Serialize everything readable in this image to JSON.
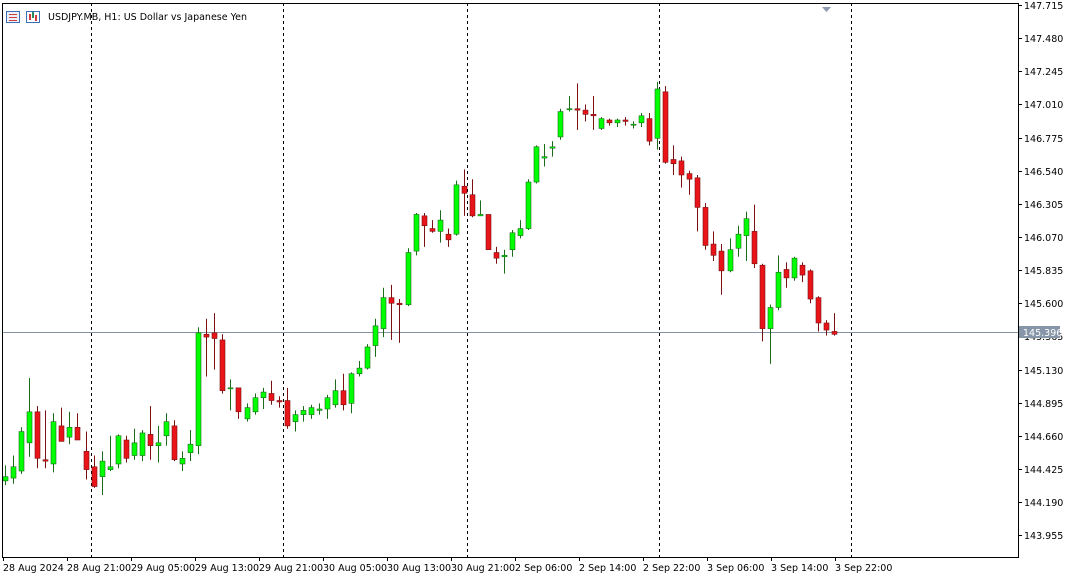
{
  "header": {
    "symbol": "USDJPY.MB",
    "timeframe": "H1:",
    "description": "US Dollar vs Japanese Yen"
  },
  "colors": {
    "bull_body": "#00ff00",
    "bear_body": "#e8141a",
    "wick_bull": "#1a6b1a",
    "wick_bear": "#7a1010",
    "axis": "#000000",
    "grid": "#000000",
    "current_price_line": "#8795a8",
    "current_price_label_bg": "#8795a8",
    "current_price_label_text": "#ffffff"
  },
  "current_price": {
    "value": 145.396,
    "label": "145.396"
  },
  "price_axis": {
    "ticks": [
      "147.715",
      "147.480",
      "147.245",
      "147.010",
      "146.775",
      "146.540",
      "146.305",
      "146.070",
      "145.835",
      "145.600",
      "145.365",
      "145.130",
      "144.895",
      "144.660",
      "144.425",
      "144.190",
      "143.955"
    ]
  },
  "time_axis": {
    "labels": [
      "28 Aug 2024",
      "28 Aug 21:00",
      "29 Aug 05:00",
      "29 Aug 13:00",
      "29 Aug 21:00",
      "30 Aug 05:00",
      "30 Aug 13:00",
      "30 Aug 21:00",
      "2 Sep 06:00",
      "2 Sep 14:00",
      "2 Sep 22:00",
      "3 Sep 06:00",
      "3 Sep 14:00",
      "3 Sep 22:00"
    ]
  },
  "chart_data": {
    "type": "candlestick",
    "title": "USDJPY.MB, H1: US Dollar vs Japanese Yen",
    "timeframe": "H1",
    "ylim": [
      143.8,
      147.73
    ],
    "grid": "vertical dashed separators",
    "candles": [
      {
        "o": 144.34,
        "h": 144.45,
        "l": 144.31,
        "c": 144.37
      },
      {
        "o": 144.36,
        "h": 144.52,
        "l": 144.32,
        "c": 144.44
      },
      {
        "o": 144.41,
        "h": 144.72,
        "l": 144.39,
        "c": 144.69
      },
      {
        "o": 144.61,
        "h": 145.07,
        "l": 144.51,
        "c": 144.83
      },
      {
        "o": 144.83,
        "h": 144.87,
        "l": 144.43,
        "c": 144.5
      },
      {
        "o": 144.49,
        "h": 144.84,
        "l": 144.43,
        "c": 144.48
      },
      {
        "o": 144.46,
        "h": 144.82,
        "l": 144.4,
        "c": 144.76
      },
      {
        "o": 144.73,
        "h": 144.86,
        "l": 144.62,
        "c": 144.62
      },
      {
        "o": 144.65,
        "h": 144.83,
        "l": 144.6,
        "c": 144.72
      },
      {
        "o": 144.72,
        "h": 144.82,
        "l": 144.64,
        "c": 144.63
      },
      {
        "o": 144.55,
        "h": 144.69,
        "l": 144.35,
        "c": 144.42
      },
      {
        "o": 144.44,
        "h": 144.52,
        "l": 144.29,
        "c": 144.3
      },
      {
        "o": 144.37,
        "h": 144.55,
        "l": 144.24,
        "c": 144.48
      },
      {
        "o": 144.42,
        "h": 144.66,
        "l": 144.41,
        "c": 144.44
      },
      {
        "o": 144.46,
        "h": 144.67,
        "l": 144.43,
        "c": 144.66
      },
      {
        "o": 144.63,
        "h": 144.66,
        "l": 144.47,
        "c": 144.5
      },
      {
        "o": 144.52,
        "h": 144.71,
        "l": 144.49,
        "c": 144.61
      },
      {
        "o": 144.52,
        "h": 144.7,
        "l": 144.48,
        "c": 144.68
      },
      {
        "o": 144.67,
        "h": 144.87,
        "l": 144.49,
        "c": 144.59
      },
      {
        "o": 144.59,
        "h": 144.73,
        "l": 144.47,
        "c": 144.61
      },
      {
        "o": 144.66,
        "h": 144.82,
        "l": 144.59,
        "c": 144.76
      },
      {
        "o": 144.73,
        "h": 144.77,
        "l": 144.48,
        "c": 144.49
      },
      {
        "o": 144.46,
        "h": 144.55,
        "l": 144.41,
        "c": 144.5
      },
      {
        "o": 144.54,
        "h": 144.7,
        "l": 144.48,
        "c": 144.6
      },
      {
        "o": 144.59,
        "h": 145.43,
        "l": 144.53,
        "c": 145.39
      },
      {
        "o": 145.38,
        "h": 145.49,
        "l": 145.08,
        "c": 145.36
      },
      {
        "o": 145.39,
        "h": 145.53,
        "l": 145.13,
        "c": 145.35
      },
      {
        "o": 145.34,
        "h": 145.38,
        "l": 144.96,
        "c": 144.98
      },
      {
        "o": 145.0,
        "h": 145.06,
        "l": 144.84,
        "c": 145.0
      },
      {
        "o": 145.0,
        "h": 145.0,
        "l": 144.78,
        "c": 144.83
      },
      {
        "o": 144.78,
        "h": 144.89,
        "l": 144.76,
        "c": 144.86
      },
      {
        "o": 144.83,
        "h": 144.96,
        "l": 144.81,
        "c": 144.93
      },
      {
        "o": 144.93,
        "h": 145.0,
        "l": 144.85,
        "c": 144.97
      },
      {
        "o": 144.96,
        "h": 145.05,
        "l": 144.88,
        "c": 144.91
      },
      {
        "o": 144.91,
        "h": 144.94,
        "l": 144.86,
        "c": 144.9
      },
      {
        "o": 144.91,
        "h": 145.0,
        "l": 144.71,
        "c": 144.73
      },
      {
        "o": 144.76,
        "h": 144.84,
        "l": 144.69,
        "c": 144.81
      },
      {
        "o": 144.81,
        "h": 144.87,
        "l": 144.76,
        "c": 144.84
      },
      {
        "o": 144.81,
        "h": 144.88,
        "l": 144.78,
        "c": 144.86
      },
      {
        "o": 144.84,
        "h": 144.89,
        "l": 144.81,
        "c": 144.85
      },
      {
        "o": 144.85,
        "h": 144.95,
        "l": 144.78,
        "c": 144.93
      },
      {
        "o": 144.88,
        "h": 145.06,
        "l": 144.86,
        "c": 144.98
      },
      {
        "o": 144.98,
        "h": 145.1,
        "l": 144.84,
        "c": 144.88
      },
      {
        "o": 144.89,
        "h": 145.11,
        "l": 144.82,
        "c": 145.1
      },
      {
        "o": 145.1,
        "h": 145.19,
        "l": 145.08,
        "c": 145.14
      },
      {
        "o": 145.14,
        "h": 145.31,
        "l": 145.13,
        "c": 145.29
      },
      {
        "o": 145.3,
        "h": 145.49,
        "l": 145.22,
        "c": 145.44
      },
      {
        "o": 145.42,
        "h": 145.71,
        "l": 145.36,
        "c": 145.64
      },
      {
        "o": 145.64,
        "h": 145.73,
        "l": 145.34,
        "c": 145.6
      },
      {
        "o": 145.6,
        "h": 145.63,
        "l": 145.32,
        "c": 145.59
      },
      {
        "o": 145.59,
        "h": 145.99,
        "l": 145.58,
        "c": 145.96
      },
      {
        "o": 145.97,
        "h": 146.24,
        "l": 145.94,
        "c": 146.23
      },
      {
        "o": 146.22,
        "h": 146.24,
        "l": 146.0,
        "c": 146.15
      },
      {
        "o": 146.13,
        "h": 146.19,
        "l": 146.1,
        "c": 146.11
      },
      {
        "o": 146.11,
        "h": 146.26,
        "l": 146.03,
        "c": 146.19
      },
      {
        "o": 146.09,
        "h": 146.13,
        "l": 146.0,
        "c": 146.05
      },
      {
        "o": 146.09,
        "h": 146.47,
        "l": 146.08,
        "c": 146.44
      },
      {
        "o": 146.43,
        "h": 146.55,
        "l": 146.22,
        "c": 146.38
      },
      {
        "o": 146.37,
        "h": 146.48,
        "l": 146.21,
        "c": 146.22
      },
      {
        "o": 146.22,
        "h": 146.33,
        "l": 146.22,
        "c": 146.23
      },
      {
        "o": 146.23,
        "h": 146.23,
        "l": 145.99,
        "c": 145.98
      },
      {
        "o": 145.96,
        "h": 146.0,
        "l": 145.88,
        "c": 145.92
      },
      {
        "o": 145.93,
        "h": 145.98,
        "l": 145.81,
        "c": 145.94
      },
      {
        "o": 145.98,
        "h": 146.12,
        "l": 145.93,
        "c": 146.1
      },
      {
        "o": 146.08,
        "h": 146.19,
        "l": 146.06,
        "c": 146.13
      },
      {
        "o": 146.13,
        "h": 146.48,
        "l": 146.12,
        "c": 146.46
      },
      {
        "o": 146.46,
        "h": 146.72,
        "l": 146.45,
        "c": 146.71
      },
      {
        "o": 146.63,
        "h": 146.73,
        "l": 146.57,
        "c": 146.64
      },
      {
        "o": 146.7,
        "h": 146.75,
        "l": 146.64,
        "c": 146.71
      },
      {
        "o": 146.78,
        "h": 146.98,
        "l": 146.76,
        "c": 146.96
      },
      {
        "o": 146.98,
        "h": 147.07,
        "l": 146.96,
        "c": 146.98
      },
      {
        "o": 146.98,
        "h": 147.16,
        "l": 146.83,
        "c": 146.97
      },
      {
        "o": 146.97,
        "h": 147.01,
        "l": 146.89,
        "c": 146.94
      },
      {
        "o": 146.94,
        "h": 147.07,
        "l": 146.83,
        "c": 146.93
      },
      {
        "o": 146.84,
        "h": 146.92,
        "l": 146.83,
        "c": 146.91
      },
      {
        "o": 146.9,
        "h": 146.91,
        "l": 146.86,
        "c": 146.88
      },
      {
        "o": 146.88,
        "h": 146.91,
        "l": 146.85,
        "c": 146.9
      },
      {
        "o": 146.9,
        "h": 146.92,
        "l": 146.86,
        "c": 146.89
      },
      {
        "o": 146.87,
        "h": 146.89,
        "l": 146.84,
        "c": 146.87
      },
      {
        "o": 146.88,
        "h": 146.95,
        "l": 146.85,
        "c": 146.93
      },
      {
        "o": 146.91,
        "h": 146.95,
        "l": 146.72,
        "c": 146.75
      },
      {
        "o": 146.77,
        "h": 147.17,
        "l": 146.69,
        "c": 147.12
      },
      {
        "o": 147.1,
        "h": 147.14,
        "l": 146.59,
        "c": 146.6
      },
      {
        "o": 146.62,
        "h": 146.72,
        "l": 146.51,
        "c": 146.59
      },
      {
        "o": 146.61,
        "h": 146.64,
        "l": 146.42,
        "c": 146.51
      },
      {
        "o": 146.52,
        "h": 146.54,
        "l": 146.37,
        "c": 146.48
      },
      {
        "o": 146.49,
        "h": 146.51,
        "l": 146.11,
        "c": 146.28
      },
      {
        "o": 146.28,
        "h": 146.31,
        "l": 145.98,
        "c": 146.01
      },
      {
        "o": 146.02,
        "h": 146.11,
        "l": 145.9,
        "c": 145.94
      },
      {
        "o": 145.97,
        "h": 146.02,
        "l": 145.66,
        "c": 145.83
      },
      {
        "o": 145.83,
        "h": 146.06,
        "l": 145.82,
        "c": 145.98
      },
      {
        "o": 145.99,
        "h": 146.15,
        "l": 145.93,
        "c": 146.09
      },
      {
        "o": 146.08,
        "h": 146.25,
        "l": 145.9,
        "c": 146.2
      },
      {
        "o": 146.11,
        "h": 146.3,
        "l": 145.85,
        "c": 145.88
      },
      {
        "o": 145.87,
        "h": 145.88,
        "l": 145.33,
        "c": 145.42
      },
      {
        "o": 145.42,
        "h": 145.59,
        "l": 145.17,
        "c": 145.57
      },
      {
        "o": 145.57,
        "h": 145.94,
        "l": 145.55,
        "c": 145.82
      },
      {
        "o": 145.84,
        "h": 145.89,
        "l": 145.71,
        "c": 145.78
      },
      {
        "o": 145.78,
        "h": 145.93,
        "l": 145.76,
        "c": 145.92
      },
      {
        "o": 145.87,
        "h": 145.89,
        "l": 145.75,
        "c": 145.8
      },
      {
        "o": 145.83,
        "h": 145.84,
        "l": 145.6,
        "c": 145.63
      },
      {
        "o": 145.64,
        "h": 145.65,
        "l": 145.4,
        "c": 145.46
      },
      {
        "o": 145.46,
        "h": 145.48,
        "l": 145.37,
        "c": 145.41
      },
      {
        "o": 145.4,
        "h": 145.53,
        "l": 145.37,
        "c": 145.38
      }
    ]
  }
}
